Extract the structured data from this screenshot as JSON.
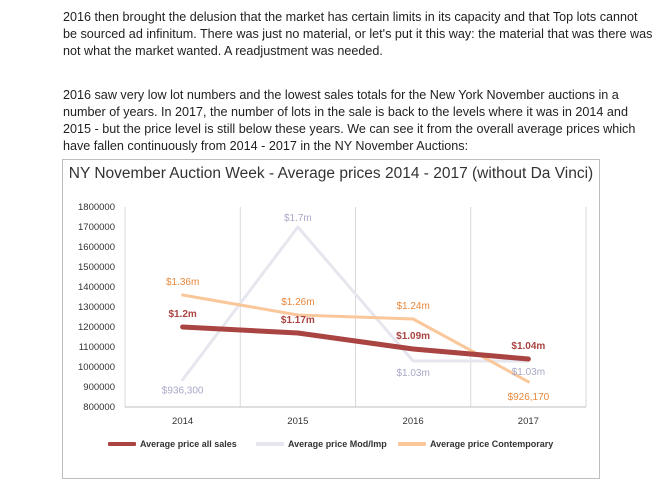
{
  "text": {
    "paragraph1": "2016 then brought the delusion that the market has certain limits in its capacity and that Top lots cannot be sourced ad infinitum. There was just no material, or let's put it this way: the material that was there was not what the market wanted. A readjustment was needed.",
    "paragraph2": "2016 saw very low lot numbers and the lowest sales totals for the New York November auctions in a number of years. In 2017, the number of lots in the sale is back to the levels where it was in 2014 and 2015 - but the price level is still below these years. We can see it from the overall average prices which have fallen continuously from 2014 - 2017 in the NY November Auctions:"
  },
  "chart_data": {
    "type": "line",
    "title": "NY November Auction Week - Average prices 2014 - 2017 (without Da Vinci)",
    "categories": [
      "2014",
      "2015",
      "2016",
      "2017"
    ],
    "ylim": [
      800000,
      1800000
    ],
    "yticks": [
      "800000",
      "900000",
      "1000000",
      "1100000",
      "1200000",
      "1300000",
      "1400000",
      "1500000",
      "1600000",
      "1700000",
      "1800000"
    ],
    "legend_position": "bottom",
    "vertical_grid": true,
    "series": [
      {
        "name": "Average price all sales",
        "color": "#a94442",
        "values": [
          1200000,
          1170000,
          1090000,
          1040000
        ],
        "labels": [
          "$1.2m",
          "$1.17m",
          "$1.09m",
          "$1.04m"
        ]
      },
      {
        "name": "Average price Mod/Imp",
        "color": "#e6e6ee",
        "label_color": "#a8a8c8",
        "values": [
          936300,
          1700000,
          1030000,
          1030000
        ],
        "labels": [
          "$936,300",
          "$1.7m",
          "$1.03m",
          "$1.03m"
        ]
      },
      {
        "name": "Average price Contemporary",
        "color": "#f9c79a",
        "label_color": "#e8873a",
        "values": [
          1360000,
          1260000,
          1240000,
          926170
        ],
        "labels": [
          "$1.36m",
          "$1.26m",
          "$1.24m",
          "$926,170"
        ]
      }
    ]
  }
}
